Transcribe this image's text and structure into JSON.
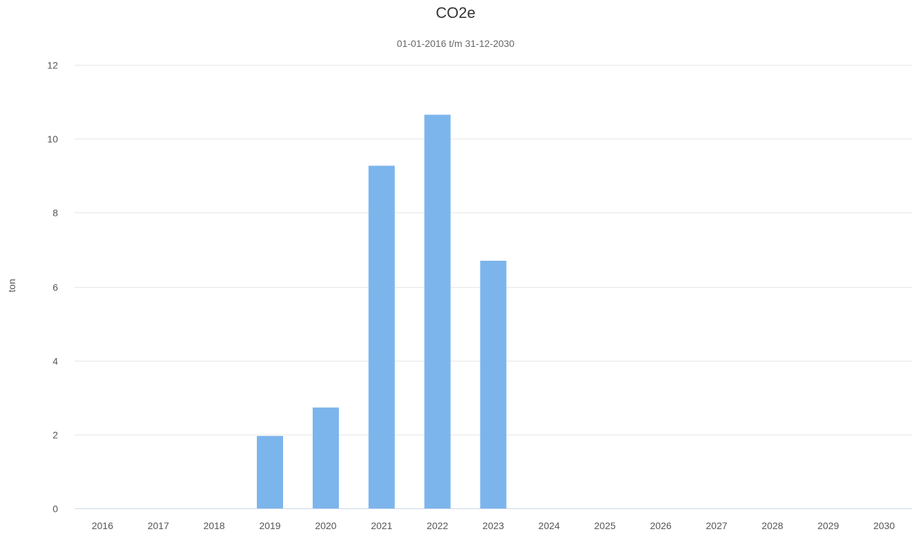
{
  "chart_data": {
    "type": "bar",
    "title": "CO2e",
    "subtitle": "01-01-2016 t/m 31-12-2030",
    "ylabel": "ton",
    "xlabel": "",
    "categories": [
      "2016",
      "2017",
      "2018",
      "2019",
      "2020",
      "2021",
      "2022",
      "2023",
      "2024",
      "2025",
      "2026",
      "2027",
      "2028",
      "2029",
      "2030"
    ],
    "values": [
      0,
      0,
      0,
      1.96,
      2.73,
      9.27,
      10.65,
      6.7,
      0,
      0,
      0,
      0,
      0,
      0,
      0
    ],
    "ylim": [
      0,
      12
    ],
    "yticks": [
      0,
      2,
      4,
      6,
      8,
      10,
      12
    ],
    "grid": true,
    "legend": "none",
    "bar_color": "#7cb5ec"
  }
}
